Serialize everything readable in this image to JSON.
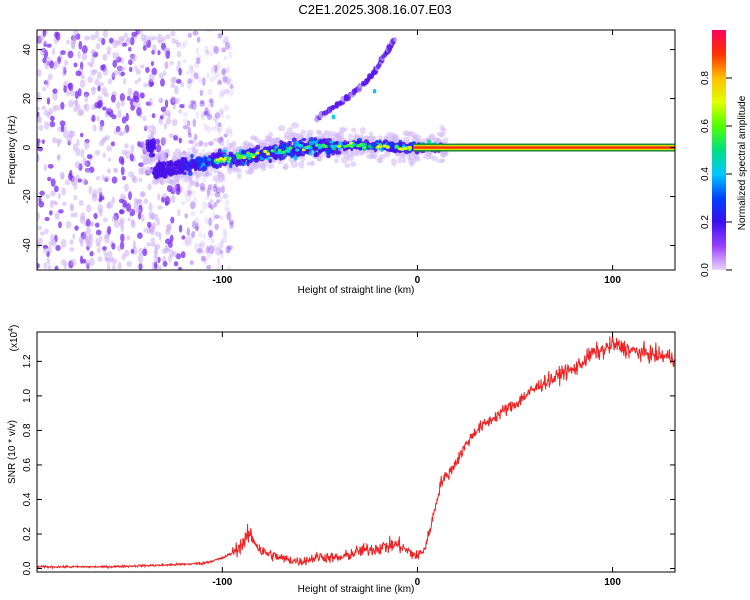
{
  "title": "C2E1.2025.308.16.07.E03",
  "chart_data": [
    {
      "type": "heatmap",
      "name": "spectrogram",
      "xlabel": "Height of straight line (km)",
      "ylabel": "Frequency (Hz)",
      "xlim": [
        -195,
        132
      ],
      "ylim": [
        -50,
        48
      ],
      "x_ticks": [
        -100,
        0,
        100
      ],
      "y_ticks": [
        -40,
        -20,
        0,
        20,
        40
      ],
      "colorbar": {
        "label": "Normalized spectral amplitude",
        "range": [
          0,
          1
        ],
        "ticks": [
          "0.0",
          "0.2",
          "0.4",
          "0.6",
          "0.8"
        ],
        "tick_values": [
          0,
          0.2,
          0.4,
          0.6,
          0.8
        ],
        "colors": [
          "#e8d8f8",
          "#9a40ff",
          "#3a10f0",
          "#0040ff",
          "#00c8ff",
          "#00e080",
          "#50ff00",
          "#e0ff00",
          "#ffc000",
          "#ff3000",
          "#ff0060"
        ]
      },
      "features": {
        "carrier_line": {
          "frequency_hz": 0,
          "x_start": -2,
          "x_end": 132
        },
        "rising_branch": [
          [
            -52,
            12
          ],
          [
            -40,
            18
          ],
          [
            -30,
            24
          ],
          [
            -22,
            31
          ],
          [
            -15,
            40
          ],
          [
            -12,
            44
          ]
        ],
        "noise_region": {
          "x_start": -195,
          "x_end": -105
        },
        "converging_band": [
          [
            -135,
            -10
          ],
          [
            -100,
            -5
          ],
          [
            -60,
            0
          ],
          [
            -30,
            1
          ],
          [
            -5,
            0
          ]
        ]
      }
    },
    {
      "type": "line",
      "name": "snr",
      "xlabel": "Height of straight line (km)",
      "ylabel": "SNR (10 * v/v)",
      "y_multiplier": "(x10",
      "y_exponent": "4",
      "y_multiplier_close": ")",
      "xlim": [
        -195,
        132
      ],
      "ylim": [
        -0.02,
        1.37
      ],
      "x_ticks": [
        -100,
        0,
        100
      ],
      "y_ticks": [
        0.0,
        0.2,
        0.4,
        0.6,
        0.8,
        1.0,
        1.2
      ],
      "x_tick_labels": [
        "-100",
        "0",
        "100"
      ],
      "y_tick_labels": [
        "0.0",
        "0.2",
        "0.4",
        "0.6",
        "0.8",
        "1.0",
        "1.2"
      ],
      "series": [
        {
          "name": "SNR",
          "color": "#ee2222",
          "x": [
            -195,
            -160,
            -130,
            -110,
            -100,
            -95,
            -90,
            -86,
            -80,
            -70,
            -60,
            -50,
            -40,
            -30,
            -20,
            -10,
            -5,
            0,
            4,
            8,
            12,
            16,
            20,
            25,
            30,
            35,
            40,
            45,
            50,
            55,
            60,
            65,
            70,
            75,
            80,
            85,
            90,
            95,
            100,
            105,
            110,
            120,
            132
          ],
          "y": [
            0.01,
            0.01,
            0.02,
            0.03,
            0.06,
            0.09,
            0.14,
            0.2,
            0.1,
            0.06,
            0.04,
            0.07,
            0.06,
            0.1,
            0.12,
            0.14,
            0.1,
            0.07,
            0.12,
            0.3,
            0.5,
            0.55,
            0.62,
            0.72,
            0.8,
            0.84,
            0.88,
            0.92,
            0.95,
            1.0,
            1.04,
            1.08,
            1.1,
            1.14,
            1.15,
            1.2,
            1.25,
            1.26,
            1.3,
            1.28,
            1.26,
            1.24,
            1.22
          ]
        }
      ]
    }
  ]
}
